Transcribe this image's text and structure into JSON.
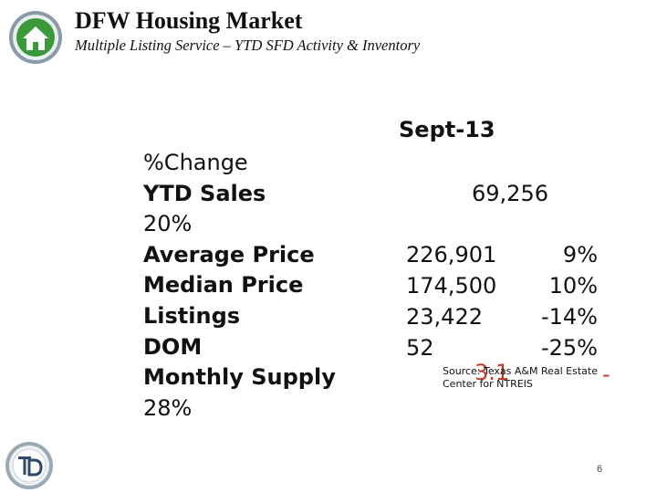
{
  "header": {
    "title": "DFW Housing Market",
    "subtitle": "Multiple Listing Service – YTD SFD Activity & Inventory"
  },
  "metrics_column": {
    "label_change": "%Change",
    "label_ytd_sales": "YTD Sales",
    "ytd_sales_change": "20%",
    "label_average_price": "Average Price",
    "label_median_price": "Median Price",
    "label_listings": "Listings",
    "label_dom": "DOM",
    "label_monthly_supply": "Monthly Supply",
    "monthly_supply_change": "28%"
  },
  "values_column": {
    "period": "Sept-13",
    "ytd_sales": "69,256",
    "average_price": "226,901",
    "average_price_change": "9%",
    "median_price": "174,500",
    "median_price_change": "10%",
    "listings": "23,422",
    "listings_change": "-14%",
    "dom": "52",
    "dom_change": "-25%",
    "monthly_supply": "3.1",
    "monthly_supply_change_sign": "-"
  },
  "source": {
    "line1": "Source: Texas A&M Real Estate",
    "line2": "Center for NTREIS"
  },
  "footer": {
    "page_number": "6"
  },
  "colors": {
    "logo_green": "#3a9a3a",
    "logo_ring": "#8a9aa6",
    "highlight_red": "#c0392b"
  }
}
